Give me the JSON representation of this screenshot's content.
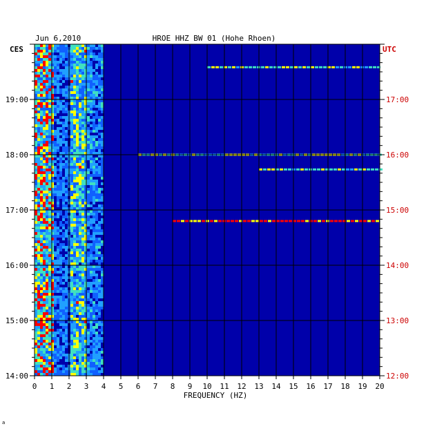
{
  "chart_data": {
    "type": "heatmap",
    "date": "Jun 6,2010",
    "title": "HROE HHZ BW 01 (Hohe Rhoen)",
    "xlabel": "FREQUENCY (HZ)",
    "x_ticks": [
      "0",
      "1",
      "2",
      "3",
      "4",
      "5",
      "6",
      "7",
      "8",
      "9",
      "10",
      "11",
      "12",
      "13",
      "14",
      "15",
      "16",
      "17",
      "18",
      "19",
      "20"
    ],
    "xlim": [
      0,
      20
    ],
    "left_axis": {
      "label": "CES",
      "ticks": [
        "14:00",
        "15:00",
        "16:00",
        "17:00",
        "18:00",
        "19:00"
      ],
      "range": [
        "14:00",
        "20:00"
      ]
    },
    "right_axis": {
      "label": "UTC",
      "ticks": [
        "12:00",
        "13:00",
        "14:00",
        "15:00",
        "16:00",
        "17:00"
      ],
      "range": [
        "12:00",
        "18:00"
      ]
    },
    "grid": true,
    "colors": {
      "background": "#0000aa",
      "low": "#0000c8",
      "mid": "#20a0ff",
      "high": "#ffff00",
      "peak": "#ff0000",
      "grid": "#000000",
      "utc_text": "#cc0000"
    },
    "energy_profile": {
      "band_0_1hz": "high",
      "band_2_3hz": "high",
      "band_3_4hz": "medium",
      "band_above_4hz": "low"
    },
    "narrowband_events": [
      {
        "time_utc": "17:35",
        "from_hz": 10,
        "to_hz": 20,
        "intensity": "medium"
      },
      {
        "time_utc": "16:00",
        "from_hz": 6,
        "to_hz": 20,
        "intensity": "medium"
      },
      {
        "time_utc": "15:44",
        "from_hz": 13,
        "to_hz": 20,
        "intensity": "medium"
      },
      {
        "time_utc": "14:48",
        "from_hz": 8,
        "to_hz": 20,
        "intensity": "high"
      }
    ],
    "footer_mark": "a"
  }
}
